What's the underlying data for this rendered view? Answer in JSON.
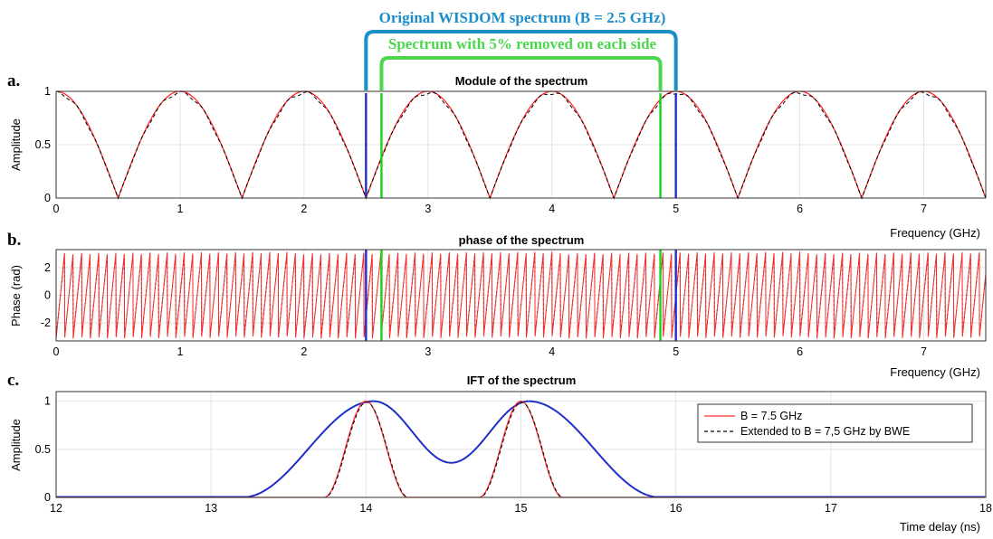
{
  "annotations": {
    "original": "Original WISDOM spectrum (B = 2.5 GHz)",
    "removed": "Spectrum with 5% removed on each side",
    "color_original": "#1a8fc8",
    "color_removed": "#4cd64c"
  },
  "colors": {
    "red": "#ff2a2a",
    "black": "#000000",
    "blue": "#1f2fc8",
    "green": "#18d418"
  },
  "chart_data": [
    {
      "type": "line",
      "panel_letter": "a.",
      "title": "Module of the spectrum",
      "xlabel": "Frequency (GHz)",
      "ylabel": "Amplitude",
      "xlim": [
        0,
        7.5
      ],
      "ylim": [
        0,
        1
      ],
      "xticks": [
        "0",
        "1",
        "2",
        "3",
        "4",
        "5",
        "6",
        "7"
      ],
      "yticks": [
        "0",
        "0.5",
        "1"
      ],
      "grid": true,
      "series": [
        {
          "name": "",
          "style": "red-solid",
          "function": "abs(cos(pi*f))",
          "x_range": [
            0,
            7.5
          ]
        },
        {
          "name": "",
          "style": "black-dashed",
          "function": "abs(cos(pi*f))",
          "x_range": [
            0,
            7.5
          ]
        }
      ],
      "markers": [
        {
          "x": 2.5,
          "color": "blue"
        },
        {
          "x": 5.0,
          "color": "blue"
        },
        {
          "x": 2.625,
          "color": "green"
        },
        {
          "x": 4.875,
          "color": "green"
        }
      ]
    },
    {
      "type": "line",
      "panel_letter": "b.",
      "title": "phase of the spectrum",
      "xlabel": "Frequency (GHz)",
      "ylabel": "Phase (rad)",
      "xlim": [
        0,
        7.5
      ],
      "ylim": [
        -3.3,
        3.3
      ],
      "xticks": [
        "0",
        "1",
        "2",
        "3",
        "4",
        "5",
        "6",
        "7"
      ],
      "yticks": [
        "-2",
        "0",
        "2"
      ],
      "grid": true,
      "series": [
        {
          "name": "",
          "style": "red-solid",
          "function": "wrapped linear phase (sawtooth, ~14.5 cycles/GHz)",
          "x_range": [
            0,
            7.5
          ]
        },
        {
          "name": "",
          "style": "black-dashed",
          "function": "wrapped linear phase (sawtooth, ~14.5 cycles/GHz)",
          "x_range": [
            0,
            7.5
          ]
        }
      ],
      "markers": [
        {
          "x": 2.5,
          "color": "blue"
        },
        {
          "x": 5.0,
          "color": "blue"
        },
        {
          "x": 2.625,
          "color": "green"
        },
        {
          "x": 4.875,
          "color": "green"
        }
      ]
    },
    {
      "type": "line",
      "panel_letter": "c.",
      "title": "IFT of the spectrum",
      "xlabel": "Time delay (ns)",
      "ylabel": "Amplitude",
      "xlim": [
        12,
        18
      ],
      "ylim": [
        0,
        1.1
      ],
      "xticks": [
        "12",
        "13",
        "14",
        "15",
        "16",
        "17",
        "18"
      ],
      "yticks": [
        "0",
        "0.5",
        "1"
      ],
      "grid": true,
      "legend_position": "top-right",
      "series": [
        {
          "name": "B = 7.5 GHz",
          "style": "red-solid",
          "peaks": [
            14.0,
            15.0
          ],
          "peak_value": 1.0,
          "half_width_ns": 0.27
        },
        {
          "name": "Extended to B = 7,5 GHz by BWE",
          "style": "black-dashed",
          "peaks": [
            14.0,
            15.0
          ],
          "peak_value": 1.0,
          "half_width_ns": 0.27
        },
        {
          "name": "",
          "style": "blue-solid",
          "peaks": [
            14.05,
            15.05
          ],
          "peak_value": 1.0,
          "min_between": [
            14.55,
            0.36
          ],
          "support": [
            13.2,
            15.9
          ]
        }
      ]
    }
  ]
}
